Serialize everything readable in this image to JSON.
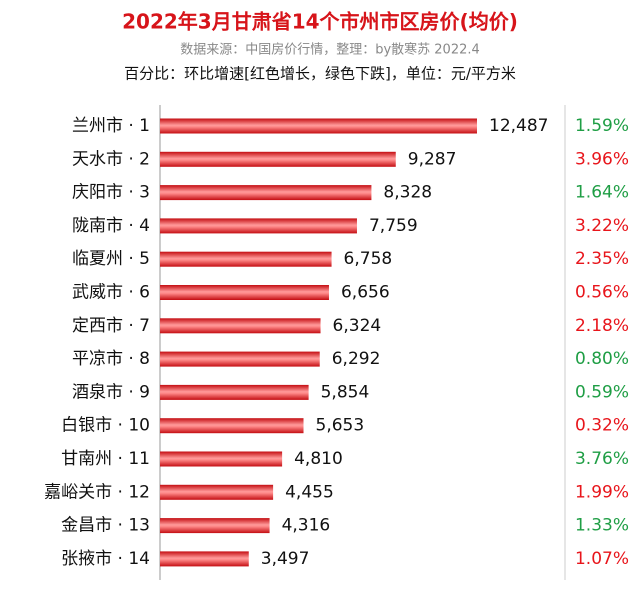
{
  "chart_data": {
    "type": "bar",
    "orientation": "horizontal",
    "title": "2022年3月甘肃省14个市州市区房价(均价)",
    "subtitle": "数据来源：中国房价行情，整理：by散寒苏  2022.4",
    "note": "百分比：环比增速[红色增长，绿色下跌]，单位：元/平方米",
    "color": "#e8151b",
    "categories": [
      "兰州市 · 1",
      "天水市 · 2",
      "庆阳市 · 3",
      "陇南市 · 4",
      "临夏州 · 5",
      "武威市 · 6",
      "定西市 · 7",
      "平凉市 · 8",
      "酒泉市 · 9",
      "白银市 · 10",
      "甘南州 · 11",
      "嘉峪关市 · 12",
      "金昌市 · 13",
      "张掖市 · 14"
    ],
    "values": [
      12487,
      9287,
      8328,
      7759,
      6758,
      6656,
      6324,
      6292,
      5854,
      5653,
      4810,
      4455,
      4316,
      3497
    ],
    "value_labels": [
      "12,487",
      "9,287",
      "8,328",
      "7,759",
      "6,758",
      "6,656",
      "6,324",
      "6,292",
      "5,854",
      "5,653",
      "4,810",
      "4,455",
      "4,316",
      "3,497"
    ],
    "changes": [
      1.59,
      3.96,
      1.64,
      3.22,
      2.35,
      0.56,
      2.18,
      0.8,
      0.59,
      0.32,
      3.76,
      1.99,
      1.33,
      1.07
    ],
    "change_labels": [
      "1.59%",
      "3.96%",
      "1.64%",
      "3.22%",
      "2.35%",
      "0.56%",
      "2.18%",
      "0.80%",
      "0.59%",
      "0.32%",
      "3.76%",
      "1.99%",
      "1.33%",
      "1.07%"
    ],
    "change_colors": [
      "#1f9e45",
      "#e8151b",
      "#1f9e45",
      "#e8151b",
      "#e8151b",
      "#e8151b",
      "#e8151b",
      "#1f9e45",
      "#1f9e45",
      "#e8151b",
      "#1f9e45",
      "#e8151b",
      "#1f9e45",
      "#e8151b"
    ]
  }
}
